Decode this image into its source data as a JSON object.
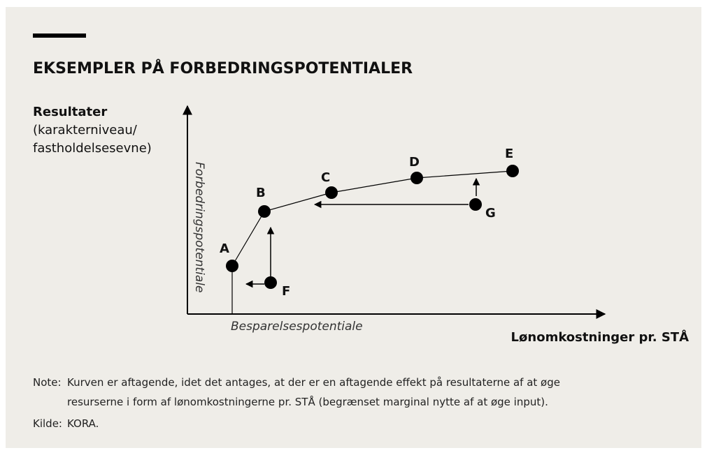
{
  "title": "EKSEMPLER PÅ FORBEDRINGSPOTENTIALER",
  "y_axis": {
    "label": "Resultater",
    "sublabel_lines": [
      "(karakterniveau/",
      "fastholdelsesevne)"
    ],
    "potential": "Forbedringspotentiale"
  },
  "x_axis": {
    "label": "Lønomkostninger pr. STÅ",
    "potential": "Besparelsespotentiale"
  },
  "nodes": [
    {
      "label": "A"
    },
    {
      "label": "B"
    },
    {
      "label": "C"
    },
    {
      "label": "D"
    },
    {
      "label": "E"
    },
    {
      "label": "F"
    },
    {
      "label": "G"
    }
  ],
  "note": {
    "label": "Note:",
    "lines": [
      "Kurven er aftagende, idet det antages, at der er en aftagende effekt på resultaterne af at øge",
      "resurserne i form af lønomkostningerne pr. STÅ (begrænset marginal nytte af at øge input)."
    ]
  },
  "source": {
    "label": "Kilde:",
    "text": "KORA."
  }
}
